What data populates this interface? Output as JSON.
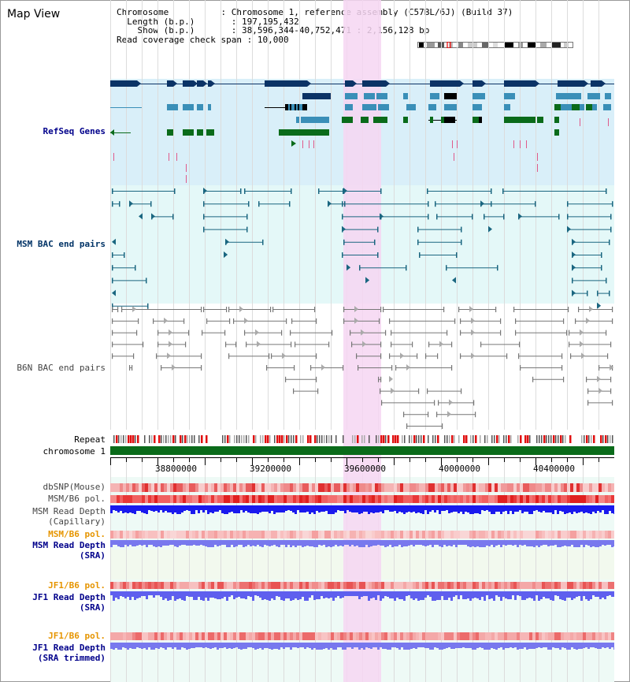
{
  "page": {
    "title": "Map View"
  },
  "info": {
    "chromosome_label": "Chromosome",
    "chromosome_value": "Chromosome 1, reference assembly (C57BL/6J) (Build 37)",
    "length_label": "Length (b.p.)",
    "length_value": "197,195,432",
    "show_label": "Show (b.p.)",
    "show_value": "38,596,344-40,752,471 : 2,156,128 bp",
    "coverage_label": "Read coverage check span",
    "coverage_value": "10,000"
  },
  "tracks": {
    "refseq": "RefSeq Genes",
    "msm_bac": "MSM BAC end pairs",
    "b6n_bac": "B6N BAC end pairs",
    "repeat": "Repeat",
    "chromosome": "chromosome 1",
    "dbsnp": "dbSNP(Mouse)",
    "msm_b6_pol_1": "MSM/B6 pol.",
    "msm_read_depth_cap_1": "MSM Read Depth",
    "msm_read_depth_cap_2": "(Capillary)",
    "msm_b6_pol_2": "MSM/B6 pol.",
    "msm_read_depth_sra_1": "MSM Read Depth",
    "msm_read_depth_sra_2": "(SRA)",
    "jf1_b6_pol_1": "JF1/B6 pol.",
    "jf1_read_depth_sra_1": "JF1 Read Depth",
    "jf1_read_depth_sra_2": "(SRA)",
    "jf1_b6_pol_2": "JF1/B6 pol.",
    "jf1_read_depth_trim_1": "JF1 Read Depth",
    "jf1_read_depth_trim_2": "(SRA trimmed)"
  },
  "axis": {
    "ticks": [
      "38800000",
      "39200000",
      "39600000",
      "40000000",
      "40400000"
    ]
  },
  "colors": {
    "highlight": "#f6d6f2",
    "refseq_bg": "#d9eff9",
    "bac_bg": "#e4f8f8",
    "gene_dark": "#0b3366",
    "gene_mid": "#3a8fb8",
    "gene_green": "#0a6b1a",
    "chromosome_bar": "#0a6b1a",
    "depth_dark": "#1a1aee",
    "depth_light": "#7878ee"
  }
}
